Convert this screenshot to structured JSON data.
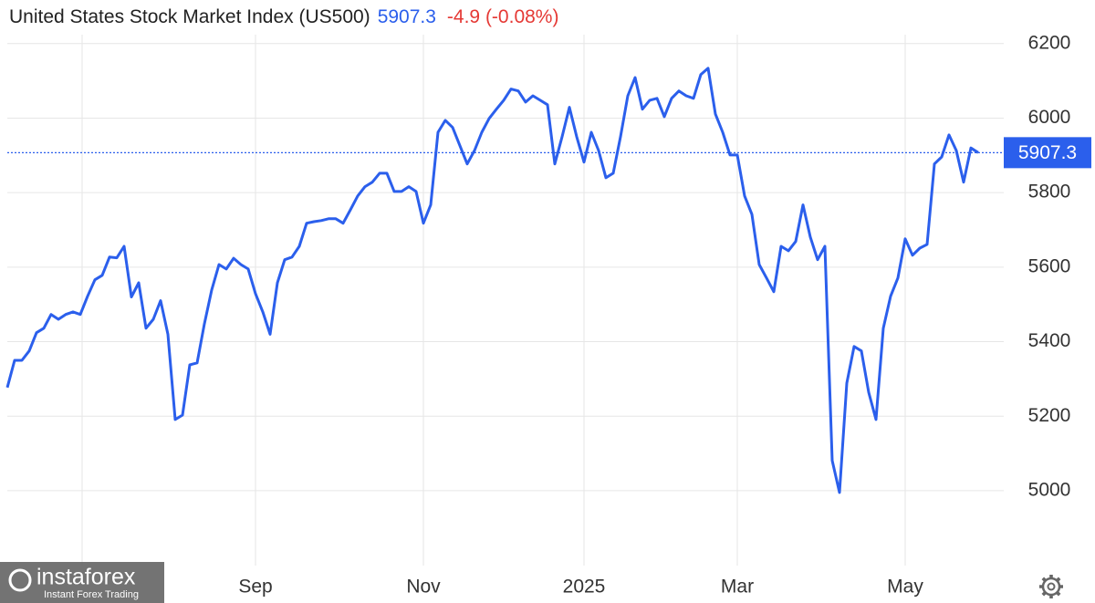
{
  "chart_data": {
    "type": "line",
    "title": "United States Stock Market Index (US500)",
    "price": 5907.3,
    "change": "-4.9 (-0.08%)",
    "watermark": "instaforex",
    "watermark_subtitle": "Instant Forex Trading",
    "color": "#2b5fec",
    "change_color": "#e53935",
    "grid": true,
    "ylim": [
      4799,
      6224
    ],
    "yticks": [
      5000,
      5200,
      5400,
      5600,
      5800,
      6000,
      6200
    ],
    "categories": [
      null,
      null,
      null,
      null,
      null,
      null,
      null,
      null,
      null,
      null,
      null,
      null,
      null,
      null,
      null,
      null,
      null,
      null,
      null,
      null,
      null,
      null,
      null,
      null,
      null,
      null,
      null,
      null,
      null,
      null,
      null,
      null,
      null,
      null,
      "Sep",
      null,
      null,
      null,
      null,
      null,
      null,
      null,
      null,
      null,
      null,
      null,
      null,
      null,
      null,
      null,
      null,
      null,
      null,
      null,
      null,
      null,
      null,
      "Nov",
      null,
      null,
      null,
      null,
      null,
      null,
      null,
      null,
      null,
      null,
      null,
      null,
      null,
      null,
      null,
      null,
      null,
      null,
      null,
      null,
      null,
      "2025",
      null,
      null,
      null,
      null,
      null,
      null,
      null,
      null,
      null,
      null,
      null,
      null,
      null,
      null,
      null,
      null,
      null,
      null,
      null,
      null,
      "Mar",
      null,
      null,
      null,
      null,
      null,
      null,
      null,
      null,
      null,
      null,
      null,
      null,
      null,
      null,
      null,
      null,
      null,
      null,
      null,
      null,
      null,
      null,
      "May",
      null,
      null,
      null,
      null,
      null,
      null,
      null,
      null,
      null,
      null
    ],
    "values": [
      5277,
      5350,
      5350,
      5375,
      5424,
      5436,
      5473,
      5460,
      5473,
      5480,
      5473,
      5522,
      5566,
      5578,
      5627,
      5625,
      5656,
      5520,
      5558,
      5436,
      5460,
      5510,
      5420,
      5191,
      5203,
      5338,
      5343,
      5448,
      5539,
      5607,
      5595,
      5624,
      5607,
      5595,
      5529,
      5480,
      5420,
      5558,
      5620,
      5627,
      5656,
      5718,
      5722,
      5725,
      5730,
      5730,
      5718,
      5754,
      5791,
      5816,
      5828,
      5852,
      5852,
      5803,
      5803,
      5816,
      5803,
      5718,
      5767,
      5962,
      5994,
      5975,
      5926,
      5877,
      5913,
      5962,
      5999,
      6024,
      6048,
      6078,
      6073,
      6043,
      6060,
      6048,
      6036,
      5877,
      5950,
      6029,
      5950,
      5882,
      5962,
      5913,
      5840,
      5852,
      5950,
      6060,
      6109,
      6024,
      6048,
      6053,
      6004,
      6053,
      6073,
      6060,
      6053,
      6117,
      6134,
      6011,
      5962,
      5901,
      5901,
      5791,
      5742,
      5607,
      5571,
      5534,
      5656,
      5644,
      5669,
      5767,
      5681,
      5620,
      5656,
      5081,
      4995,
      5289,
      5387,
      5375,
      5264,
      5191,
      5436,
      5522,
      5571,
      5676,
      5632,
      5651,
      5661,
      5877,
      5896,
      5955,
      5913,
      5828,
      5920,
      5907.3
    ]
  }
}
